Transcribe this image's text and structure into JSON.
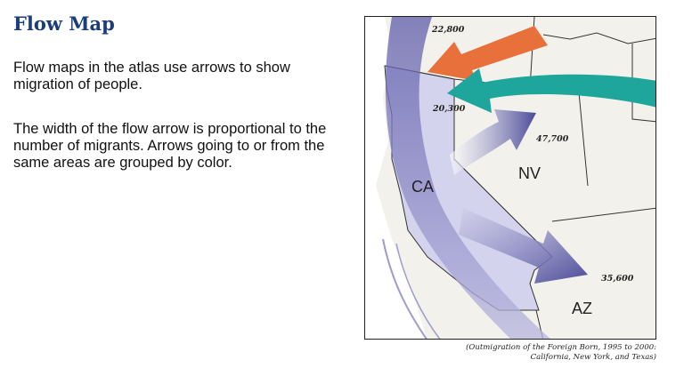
{
  "title": "Flow Map",
  "paragraphs": [
    "Flow maps in the atlas use arrows to show migration of people.",
    "The width of the flow arrow is proportional to the number of migrants. Arrows going to or from the same areas are grouped by color."
  ],
  "map": {
    "state_labels": {
      "ca": "CA",
      "nv": "NV",
      "az": "AZ"
    },
    "flow_labels": {
      "orange": "22,800",
      "teal": "20,300",
      "nv": "47,700",
      "az": "35,600"
    },
    "colors": {
      "orange": "#e8703a",
      "teal": "#1ea59c",
      "purple": "#4b4a99",
      "california_fill": "#d4d3ee",
      "land": "#f3f1ec"
    }
  },
  "caption": {
    "line1": "(Outmigration of the Foreign Born, 1995 to 2000:",
    "line2": "California, New York, and Texas)"
  }
}
